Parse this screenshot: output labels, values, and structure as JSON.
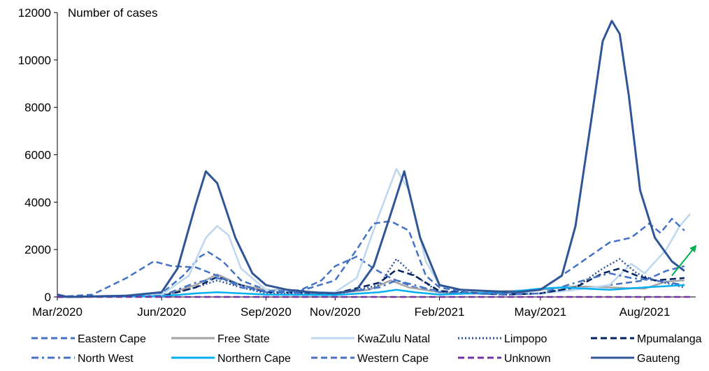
{
  "chart_data": {
    "type": "line",
    "ylabel": "Number of cases",
    "ylim": [
      0,
      12000
    ],
    "yticks": [
      0,
      2000,
      4000,
      6000,
      8000,
      10000,
      12000
    ],
    "xlim": [
      "2020-03-01",
      "2021-09-15"
    ],
    "xticks": [
      {
        "date": "2020-03-01",
        "label": "Mar/2020"
      },
      {
        "date": "2020-06-01",
        "label": "Jun/2020"
      },
      {
        "date": "2020-09-01",
        "label": "Sep/2020"
      },
      {
        "date": "2020-11-01",
        "label": "Nov/2020"
      },
      {
        "date": "2021-02-01",
        "label": "Feb/2021"
      },
      {
        "date": "2021-05-01",
        "label": "May/2021"
      },
      {
        "date": "2021-08-01",
        "label": "Aug/2021"
      }
    ],
    "legend_position": "bottom",
    "series": [
      {
        "name": "Eastern Cape",
        "color": "#4472c4",
        "dash": "dash",
        "points": [
          [
            "2020-03-01",
            0
          ],
          [
            "2020-05-01",
            50
          ],
          [
            "2020-06-01",
            150
          ],
          [
            "2020-06-20",
            900
          ],
          [
            "2020-07-05",
            1700
          ],
          [
            "2020-07-12",
            1900
          ],
          [
            "2020-07-25",
            1500
          ],
          [
            "2020-08-10",
            700
          ],
          [
            "2020-09-01",
            300
          ],
          [
            "2020-10-01",
            280
          ],
          [
            "2020-10-20",
            700
          ],
          [
            "2020-11-01",
            1300
          ],
          [
            "2020-11-20",
            1700
          ],
          [
            "2020-12-05",
            1200
          ],
          [
            "2020-12-20",
            800
          ],
          [
            "2021-01-10",
            400
          ],
          [
            "2021-02-01",
            250
          ],
          [
            "2021-03-01",
            150
          ],
          [
            "2021-04-01",
            100
          ],
          [
            "2021-05-01",
            150
          ],
          [
            "2021-06-01",
            300
          ],
          [
            "2021-07-01",
            500
          ],
          [
            "2021-08-01",
            700
          ],
          [
            "2021-08-20",
            1100
          ],
          [
            "2021-09-05",
            1300
          ]
        ]
      },
      {
        "name": "Free State",
        "color": "#a5a5a5",
        "dash": "solid",
        "points": [
          [
            "2020-03-01",
            0
          ],
          [
            "2020-06-01",
            50
          ],
          [
            "2020-07-01",
            500
          ],
          [
            "2020-07-20",
            950
          ],
          [
            "2020-08-10",
            500
          ],
          [
            "2020-09-01",
            300
          ],
          [
            "2020-10-01",
            250
          ],
          [
            "2020-11-01",
            150
          ],
          [
            "2020-12-01",
            300
          ],
          [
            "2020-12-20",
            700
          ],
          [
            "2021-01-05",
            400
          ],
          [
            "2021-02-01",
            200
          ],
          [
            "2021-03-01",
            150
          ],
          [
            "2021-04-01",
            250
          ],
          [
            "2021-05-01",
            300
          ],
          [
            "2021-06-01",
            450
          ],
          [
            "2021-07-01",
            400
          ],
          [
            "2021-08-01",
            350
          ],
          [
            "2021-08-20",
            650
          ],
          [
            "2021-09-05",
            700
          ]
        ]
      },
      {
        "name": "KwaZulu Natal",
        "color": "#bdd7ee",
        "dash": "solid",
        "points": [
          [
            "2020-03-01",
            0
          ],
          [
            "2020-06-01",
            100
          ],
          [
            "2020-06-25",
            900
          ],
          [
            "2020-07-10",
            2500
          ],
          [
            "2020-07-20",
            3000
          ],
          [
            "2020-07-30",
            2600
          ],
          [
            "2020-08-10",
            1200
          ],
          [
            "2020-09-01",
            300
          ],
          [
            "2020-10-01",
            200
          ],
          [
            "2020-11-01",
            200
          ],
          [
            "2020-11-20",
            800
          ],
          [
            "2020-12-10",
            3500
          ],
          [
            "2020-12-25",
            5400
          ],
          [
            "2021-01-05",
            4500
          ],
          [
            "2021-01-20",
            1500
          ],
          [
            "2021-02-01",
            500
          ],
          [
            "2021-03-01",
            200
          ],
          [
            "2021-05-01",
            150
          ],
          [
            "2021-06-01",
            300
          ],
          [
            "2021-07-01",
            500
          ],
          [
            "2021-07-20",
            1400
          ],
          [
            "2021-08-01",
            1000
          ],
          [
            "2021-08-20",
            2000
          ],
          [
            "2021-09-01",
            3000
          ],
          [
            "2021-09-10",
            3500
          ]
        ]
      },
      {
        "name": "Limpopo",
        "color": "#2f5597",
        "dash": "dot",
        "points": [
          [
            "2020-03-01",
            0
          ],
          [
            "2020-06-01",
            20
          ],
          [
            "2020-07-01",
            400
          ],
          [
            "2020-07-20",
            700
          ],
          [
            "2020-08-10",
            400
          ],
          [
            "2020-09-01",
            150
          ],
          [
            "2020-11-01",
            100
          ],
          [
            "2020-12-10",
            500
          ],
          [
            "2020-12-25",
            1600
          ],
          [
            "2021-01-10",
            900
          ],
          [
            "2021-02-01",
            200
          ],
          [
            "2021-04-01",
            100
          ],
          [
            "2021-05-01",
            150
          ],
          [
            "2021-06-01",
            400
          ],
          [
            "2021-06-25",
            1200
          ],
          [
            "2021-07-10",
            1600
          ],
          [
            "2021-07-25",
            1000
          ],
          [
            "2021-08-10",
            700
          ],
          [
            "2021-09-05",
            400
          ]
        ]
      },
      {
        "name": "Mpumalanga",
        "color": "#002060",
        "dash": "dash",
        "points": [
          [
            "2020-03-01",
            0
          ],
          [
            "2020-06-01",
            20
          ],
          [
            "2020-07-01",
            400
          ],
          [
            "2020-07-20",
            850
          ],
          [
            "2020-08-10",
            500
          ],
          [
            "2020-09-01",
            200
          ],
          [
            "2020-11-01",
            150
          ],
          [
            "2020-12-10",
            600
          ],
          [
            "2020-12-25",
            1150
          ],
          [
            "2021-01-10",
            900
          ],
          [
            "2021-02-01",
            250
          ],
          [
            "2021-04-01",
            100
          ],
          [
            "2021-05-01",
            150
          ],
          [
            "2021-06-01",
            400
          ],
          [
            "2021-06-25",
            1000
          ],
          [
            "2021-07-10",
            1200
          ],
          [
            "2021-07-25",
            900
          ],
          [
            "2021-08-10",
            700
          ],
          [
            "2021-09-05",
            800
          ]
        ]
      },
      {
        "name": "North West",
        "color": "#4472c4",
        "dash": "dashdot",
        "points": [
          [
            "2020-03-01",
            0
          ],
          [
            "2020-06-01",
            50
          ],
          [
            "2020-07-01",
            600
          ],
          [
            "2020-07-20",
            800
          ],
          [
            "2020-08-10",
            500
          ],
          [
            "2020-09-01",
            200
          ],
          [
            "2020-11-01",
            150
          ],
          [
            "2020-12-10",
            400
          ],
          [
            "2020-12-25",
            700
          ],
          [
            "2021-01-10",
            500
          ],
          [
            "2021-02-01",
            200
          ],
          [
            "2021-04-01",
            100
          ],
          [
            "2021-05-01",
            150
          ],
          [
            "2021-06-01",
            600
          ],
          [
            "2021-07-01",
            1000
          ],
          [
            "2021-07-20",
            800
          ],
          [
            "2021-08-10",
            700
          ],
          [
            "2021-09-05",
            500
          ]
        ]
      },
      {
        "name": "Northern Cape",
        "color": "#00b0f0",
        "dash": "solid",
        "points": [
          [
            "2020-03-01",
            0
          ],
          [
            "2020-06-01",
            30
          ],
          [
            "2020-07-01",
            150
          ],
          [
            "2020-07-20",
            200
          ],
          [
            "2020-08-10",
            150
          ],
          [
            "2020-09-01",
            100
          ],
          [
            "2020-11-01",
            80
          ],
          [
            "2020-12-10",
            200
          ],
          [
            "2020-12-25",
            300
          ],
          [
            "2021-01-10",
            200
          ],
          [
            "2021-02-01",
            100
          ],
          [
            "2021-04-01",
            200
          ],
          [
            "2021-05-01",
            350
          ],
          [
            "2021-05-20",
            400
          ],
          [
            "2021-06-10",
            350
          ],
          [
            "2021-07-01",
            300
          ],
          [
            "2021-08-01",
            400
          ],
          [
            "2021-09-05",
            500
          ]
        ]
      },
      {
        "name": "Western Cape",
        "color": "#4472c4",
        "dash": "dash",
        "points": [
          [
            "2020-03-01",
            0
          ],
          [
            "2020-04-01",
            100
          ],
          [
            "2020-05-01",
            800
          ],
          [
            "2020-05-25",
            1500
          ],
          [
            "2020-06-10",
            1300
          ],
          [
            "2020-07-01",
            1250
          ],
          [
            "2020-07-20",
            900
          ],
          [
            "2020-08-10",
            400
          ],
          [
            "2020-09-01",
            250
          ],
          [
            "2020-10-01",
            250
          ],
          [
            "2020-11-01",
            700
          ],
          [
            "2020-11-20",
            2000
          ],
          [
            "2020-12-05",
            3100
          ],
          [
            "2020-12-20",
            3200
          ],
          [
            "2021-01-05",
            2800
          ],
          [
            "2021-01-20",
            900
          ],
          [
            "2021-02-01",
            400
          ],
          [
            "2021-03-01",
            150
          ],
          [
            "2021-04-01",
            150
          ],
          [
            "2021-05-01",
            300
          ],
          [
            "2021-06-01",
            1300
          ],
          [
            "2021-07-01",
            2300
          ],
          [
            "2021-07-20",
            2500
          ],
          [
            "2021-08-05",
            3100
          ],
          [
            "2021-08-15",
            2700
          ],
          [
            "2021-08-25",
            3300
          ],
          [
            "2021-09-05",
            2800
          ]
        ]
      },
      {
        "name": "Unknown",
        "color": "#7030a0",
        "dash": "dash",
        "points": [
          [
            "2020-03-01",
            0
          ],
          [
            "2021-09-10",
            0
          ]
        ]
      },
      {
        "name": "Gauteng",
        "color": "#2f5597",
        "dash": "solid",
        "points": [
          [
            "2020-03-01",
            100
          ],
          [
            "2020-03-10",
            0
          ],
          [
            "2020-05-01",
            50
          ],
          [
            "2020-06-01",
            200
          ],
          [
            "2020-06-15",
            1200
          ],
          [
            "2020-07-01",
            3900
          ],
          [
            "2020-07-10",
            5300
          ],
          [
            "2020-07-20",
            4800
          ],
          [
            "2020-08-05",
            2500
          ],
          [
            "2020-08-20",
            1000
          ],
          [
            "2020-09-01",
            500
          ],
          [
            "2020-09-20",
            300
          ],
          [
            "2020-10-10",
            200
          ],
          [
            "2020-11-01",
            150
          ],
          [
            "2020-11-20",
            300
          ],
          [
            "2020-12-05",
            1300
          ],
          [
            "2020-12-20",
            3500
          ],
          [
            "2021-01-01",
            5300
          ],
          [
            "2021-01-15",
            2500
          ],
          [
            "2021-02-01",
            500
          ],
          [
            "2021-02-20",
            300
          ],
          [
            "2021-03-15",
            250
          ],
          [
            "2021-04-10",
            200
          ],
          [
            "2021-05-01",
            300
          ],
          [
            "2021-05-20",
            900
          ],
          [
            "2021-06-01",
            3000
          ],
          [
            "2021-06-15",
            7500
          ],
          [
            "2021-06-25",
            10800
          ],
          [
            "2021-07-03",
            11650
          ],
          [
            "2021-07-10",
            11100
          ],
          [
            "2021-07-18",
            8500
          ],
          [
            "2021-07-28",
            4500
          ],
          [
            "2021-08-10",
            2500
          ],
          [
            "2021-08-25",
            1500
          ],
          [
            "2021-09-05",
            1100
          ]
        ]
      }
    ],
    "annotations": [
      {
        "type": "arrow",
        "color": "#00b050",
        "from": [
          "2021-08-25",
          900
        ],
        "to": [
          "2021-09-15",
          2150
        ]
      }
    ]
  }
}
